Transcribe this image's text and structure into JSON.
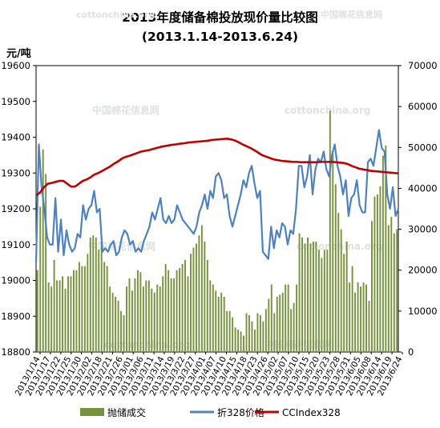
{
  "chart_data": {
    "type": "bar",
    "title": "2013年度储备棉投放现价量比较图",
    "subtitle": "(2013.1.14-2013.6.24)",
    "ylabel_left": "元/吨",
    "ylim_left": [
      18800,
      19600
    ],
    "yticks_left": [
      "19600",
      "19500",
      "19400",
      "19300",
      "19200",
      "19100",
      "19000",
      "18900",
      "18800"
    ],
    "ylim_right": [
      0,
      70000
    ],
    "yticks_right": [
      "70000",
      "60000",
      "50000",
      "40000",
      "30000",
      "20000",
      "10000",
      "0"
    ],
    "xtick_labels": [
      "2013/1/14",
      "2013/1/17",
      "2013/1/22",
      "2013/1/25",
      "2013/1/30",
      "2013/2/02",
      "2013/2/18",
      "2013/2/21",
      "2013/2/26",
      "2013/3/01",
      "2013/3/06",
      "2013/3/11",
      "2013/3/14",
      "2013/3/19",
      "2013/3/22",
      "2013/3/27",
      "2013/4/01",
      "2013/4/07",
      "2013/4/10",
      "2013/4/15",
      "2013/4/18",
      "2013/4/23",
      "2013/4/26",
      "2013/5/02",
      "2013/5/07",
      "2013/5/10",
      "2013/5/15",
      "2013/5/20",
      "2013/5/23",
      "2013/5/28",
      "2013/5/31",
      "2013/6/05",
      "2013/6/08",
      "2013/6/14",
      "2013/6/19",
      "2013/6/24"
    ],
    "series": [
      {
        "name": "抛储成交",
        "type": "bar",
        "axis": "right",
        "color": "#76923c",
        "values": [
          20000,
          35500,
          49500,
          43500,
          17000,
          16000,
          22500,
          17500,
          17500,
          18500,
          15500,
          18500,
          18500,
          20000,
          20000,
          22000,
          21000,
          21000,
          24000,
          28000,
          28500,
          28000,
          25000,
          27000,
          22000,
          21000,
          16000,
          14500,
          13500,
          12500,
          10000,
          9000,
          16000,
          18000,
          15000,
          18000,
          20000,
          19500,
          16000,
          17500,
          17500,
          15500,
          14500,
          16500,
          16000,
          18500,
          21500,
          20000,
          18000,
          18000,
          20000,
          20500,
          21500,
          22500,
          18500,
          24000,
          25500,
          26500,
          28500,
          31000,
          27000,
          22500,
          17500,
          16500,
          15000,
          13500,
          14500,
          13500,
          10000,
          10000,
          8500,
          6000,
          5500,
          5000,
          4000,
          9500,
          9000,
          7500,
          5500,
          9500,
          9000,
          7500,
          10500,
          13000,
          16500,
          9500,
          13500,
          14000,
          14500,
          16500,
          16500,
          10500,
          12000,
          16500,
          29000,
          28000,
          26500,
          28000,
          26500,
          27000,
          27000,
          25000,
          23000,
          25000,
          25000,
          59000,
          49000,
          41000,
          34000,
          30000,
          24000,
          27000,
          17000,
          21000,
          14500,
          17000,
          16000,
          17000,
          16500,
          12500,
          32000,
          38000,
          38500,
          40500,
          48000,
          50500,
          31000,
          33000,
          29000,
          30000
        ],
        "note_partial": "extra values not required"
      },
      {
        "name": "折328价格",
        "type": "line",
        "axis": "left",
        "color": "#4f81bd",
        "values": [
          19050,
          19380,
          19260,
          19200,
          19120,
          19100,
          19100,
          19230,
          19080,
          19170,
          19070,
          19140,
          19100,
          19080,
          19090,
          19130,
          19120,
          19210,
          19170,
          19200,
          19210,
          19250,
          19190,
          19200,
          19080,
          19090,
          19080,
          19100,
          19110,
          19070,
          19080,
          19120,
          19140,
          19130,
          19100,
          19110,
          19080,
          19090,
          19080,
          19110,
          19130,
          19150,
          19190,
          19170,
          19200,
          19230,
          19170,
          19160,
          19180,
          19160,
          19170,
          19210,
          19190,
          19170,
          19160,
          19150,
          19140,
          19130,
          19150,
          19190,
          19210,
          19240,
          19200,
          19250,
          19230,
          19290,
          19300,
          19280,
          19230,
          19240,
          19180,
          19150,
          19180,
          19210,
          19240,
          19280,
          19260,
          19300,
          19320,
          19270,
          19230,
          19250,
          19080,
          19070,
          19060,
          19150,
          19090,
          19140,
          19120,
          19160,
          19150,
          19100,
          19140,
          19130,
          19200,
          19320,
          19320,
          19260,
          19290,
          19350,
          19240,
          19310,
          19340,
          19330,
          19360,
          19310,
          19290,
          19350,
          19380,
          19320,
          19290,
          19240,
          19280,
          19180,
          19230,
          19240,
          19280,
          19210,
          19190,
          19190,
          19330,
          19340,
          19320,
          19370,
          19420,
          19370,
          19360,
          19240,
          19200,
          19260,
          19180,
          19200
        ],
        "note_partial": ""
      },
      {
        "name": "CCIndex328",
        "type": "line",
        "axis": "left",
        "color": "#c00000",
        "values": [
          19238,
          19245,
          19260,
          19270,
          19272,
          19275,
          19278,
          19278,
          19270,
          19262,
          19262,
          19270,
          19278,
          19282,
          19288,
          19296,
          19300,
          19306,
          19312,
          19318,
          19326,
          19332,
          19340,
          19345,
          19348,
          19352,
          19356,
          19360,
          19362,
          19364,
          19367,
          19370,
          19373,
          19375,
          19377,
          19379,
          19380,
          19382,
          19383,
          19385,
          19386,
          19387,
          19388,
          19389,
          19390,
          19392,
          19393,
          19394,
          19395,
          19396,
          19394,
          19391,
          19386,
          19380,
          19375,
          19370,
          19364,
          19357,
          19350,
          19346,
          19342,
          19338,
          19336,
          19334,
          19333,
          19332,
          19331,
          19331,
          19330,
          19330,
          19330,
          19330,
          19330,
          19331,
          19331,
          19331,
          19331,
          19330,
          19329,
          19328,
          19325,
          19320,
          19316,
          19312,
          19310,
          19308,
          19306,
          19305,
          19304,
          19303,
          19302,
          19301,
          19300,
          19299
        ],
        "note_partial": ""
      }
    ],
    "grid": false,
    "legend_position": "bottom"
  },
  "watermarks": [
    "cottonchina.org",
    "中国棉花信息网"
  ]
}
